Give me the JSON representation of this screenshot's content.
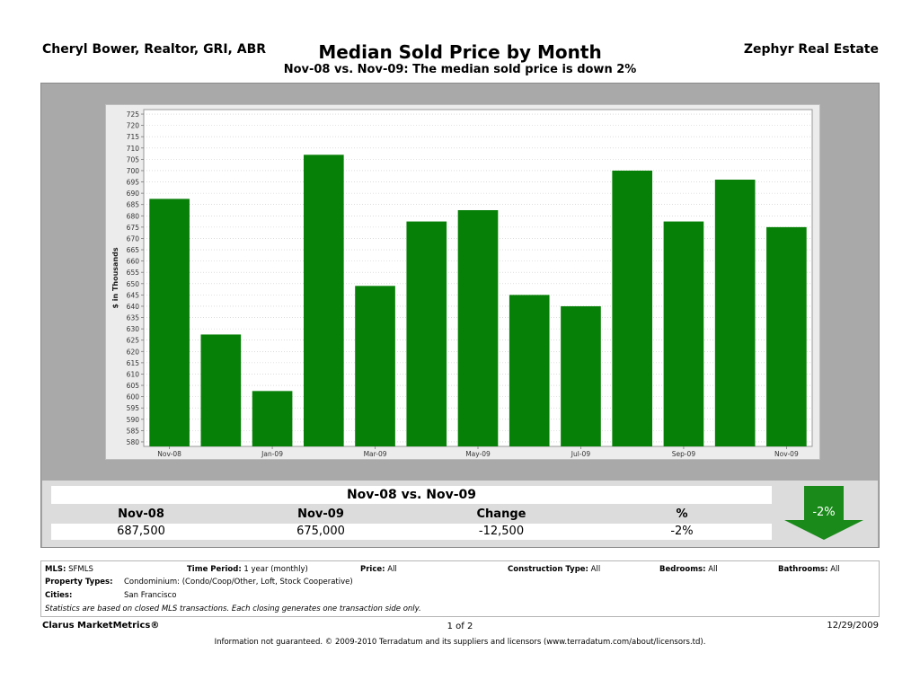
{
  "header": {
    "agent": "Cheryl Bower, Realtor, GRI, ABR",
    "brokerage": "Zephyr Real Estate",
    "title": "Median Sold Price by Month",
    "subtitle": "Nov-08 vs. Nov-09:  The median sold price is down 2%"
  },
  "colors": {
    "bar": "#078007",
    "panel": "#a9a9a9",
    "arrow": "#1a8a1a"
  },
  "chart_data": {
    "type": "bar",
    "ylabel": "$ in Thousands",
    "ylim": [
      578,
      727
    ],
    "yticks": [
      580,
      585,
      590,
      595,
      600,
      605,
      610,
      615,
      620,
      625,
      630,
      635,
      640,
      645,
      650,
      655,
      660,
      665,
      670,
      675,
      680,
      685,
      690,
      695,
      700,
      705,
      710,
      715,
      720,
      725
    ],
    "categories": [
      "Nov-08",
      "Dec-08",
      "Jan-09",
      "Feb-09",
      "Mar-09",
      "Apr-09",
      "May-09",
      "Jun-09",
      "Jul-09",
      "Aug-09",
      "Sep-09",
      "Oct-09",
      "Nov-09"
    ],
    "category_labels": [
      "Nov-08",
      "",
      "Jan-09",
      "",
      "Mar-09",
      "",
      "May-09",
      "",
      "Jul-09",
      "",
      "Sep-09",
      "",
      "Nov-09"
    ],
    "values": [
      687.5,
      627.5,
      602.5,
      707.0,
      649.0,
      677.5,
      682.5,
      645.0,
      640.0,
      700.0,
      677.5,
      696.0,
      675.0
    ],
    "grid": true
  },
  "summary": {
    "title": "Nov-08 vs. Nov-09",
    "headers": [
      "Nov-08",
      "Nov-09",
      "Change",
      "%"
    ],
    "values": [
      "687,500",
      "675,000",
      "-12,500",
      "-2%"
    ],
    "badge": "-2%"
  },
  "criteria": {
    "mls_label": "MLS:",
    "mls_value": "SFMLS",
    "time_label": "Time Period:",
    "time_value": "1 year (monthly)",
    "price_label": "Price:",
    "price_value": "All",
    "construction_label": "Construction Type:",
    "construction_value": "All",
    "bedrooms_label": "Bedrooms:",
    "bedrooms_value": "All",
    "bathrooms_label": "Bathrooms:",
    "bathrooms_value": "All",
    "property_label": "Property Types:",
    "property_value": "Condominium: (Condo/Coop/Other, Loft, Stock Cooperative)",
    "cities_label": "Cities:",
    "cities_value": "San Francisco",
    "note": "Statistics are based on closed MLS transactions.  Each closing generates one transaction side only."
  },
  "footer": {
    "brand": "Clarus MarketMetrics®",
    "page": "1 of 2",
    "date": "12/29/2009",
    "disclaimer": "Information not guaranteed.  © 2009-2010 Terradatum and its suppliers and licensors (www.terradatum.com/about/licensors.td)."
  }
}
